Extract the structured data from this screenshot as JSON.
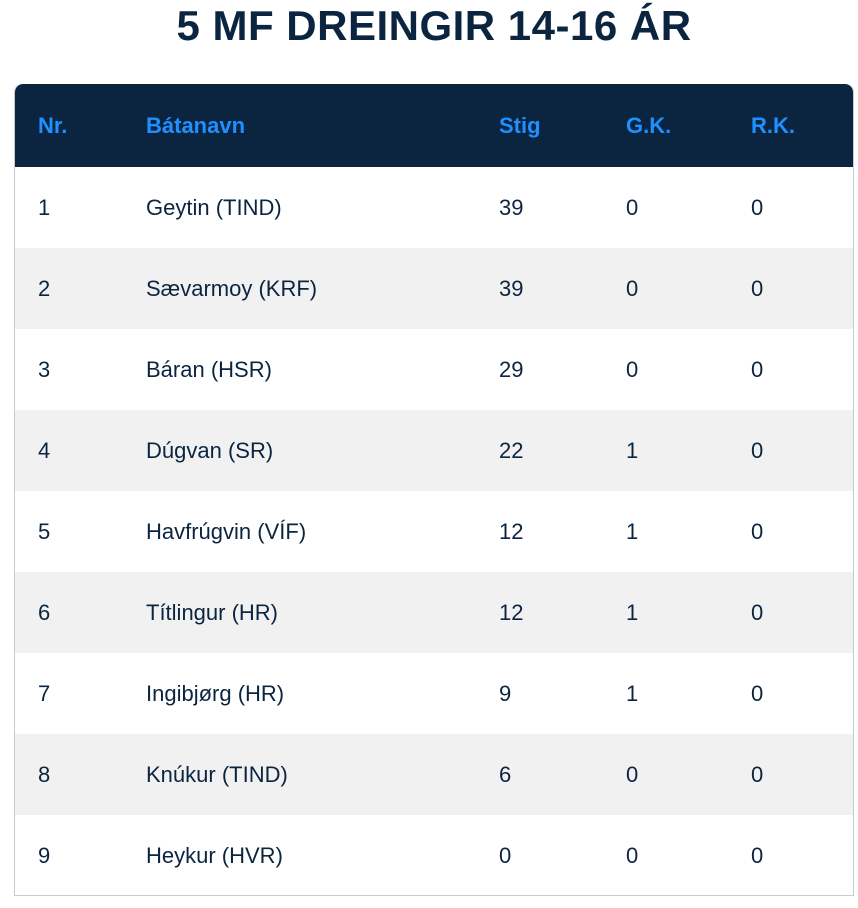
{
  "title": "5 MF DREINGIR 14-16 ÁR",
  "table": {
    "headers": {
      "nr": "Nr.",
      "name": "Bátanavn",
      "stig": "Stig",
      "gk": "G.K.",
      "rk": "R.K."
    },
    "rows": [
      {
        "nr": "1",
        "name": "Geytin (TIND)",
        "stig": "39",
        "gk": "0",
        "rk": "0"
      },
      {
        "nr": "2",
        "name": "Sævarmoy (KRF)",
        "stig": "39",
        "gk": "0",
        "rk": "0"
      },
      {
        "nr": "3",
        "name": "Báran (HSR)",
        "stig": "29",
        "gk": "0",
        "rk": "0"
      },
      {
        "nr": "4",
        "name": "Dúgvan (SR)",
        "stig": "22",
        "gk": "1",
        "rk": "0"
      },
      {
        "nr": "5",
        "name": "Havfrúgvin (VÍF)",
        "stig": "12",
        "gk": "1",
        "rk": "0"
      },
      {
        "nr": "6",
        "name": "Títlingur (HR)",
        "stig": "12",
        "gk": "1",
        "rk": "0"
      },
      {
        "nr": "7",
        "name": "Ingibjørg (HR)",
        "stig": "9",
        "gk": "1",
        "rk": "0"
      },
      {
        "nr": "8",
        "name": "Knúkur (TIND)",
        "stig": "6",
        "gk": "0",
        "rk": "0"
      },
      {
        "nr": "9",
        "name": "Heykur (HVR)",
        "stig": "0",
        "gk": "0",
        "rk": "0"
      }
    ]
  },
  "colors": {
    "header_bg": "#0b2540",
    "header_text": "#1e90ff",
    "body_text": "#0b2540",
    "stripe": "#f1f1f1"
  }
}
